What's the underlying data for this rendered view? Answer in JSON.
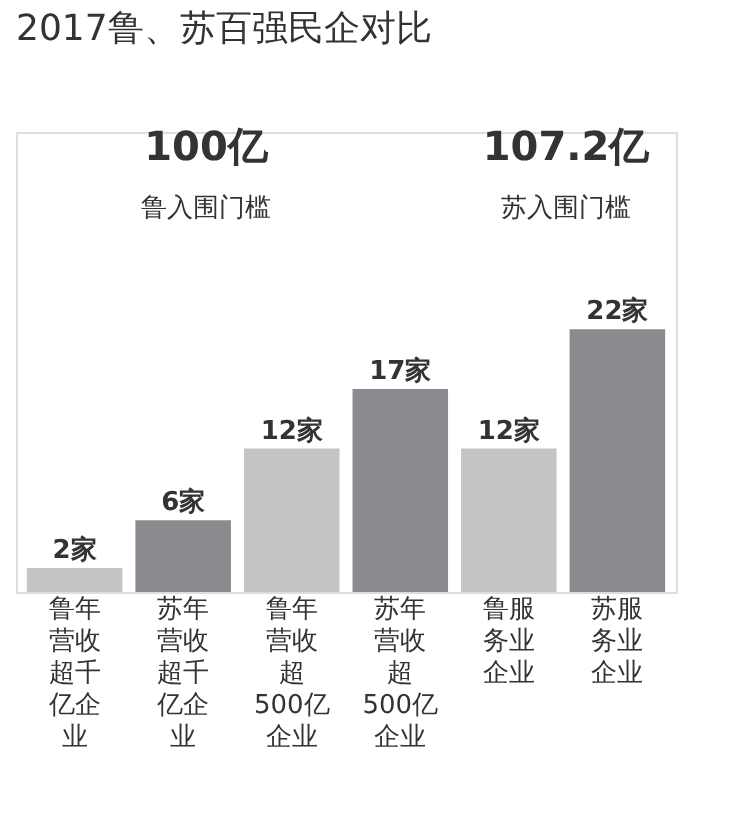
{
  "chart_data": {
    "type": "bar",
    "title": "2017鲁、苏百强民企对比",
    "categories": [
      "鲁年营收超千亿企业",
      "苏年营收超千亿企业",
      "鲁年营收超500亿企业",
      "苏年营收超500亿企业",
      "鲁服务业企业",
      "苏服务业企业"
    ],
    "values": [
      2,
      6,
      12,
      17,
      12,
      22
    ],
    "colors": [
      "#c4c4c4",
      "#8b8b8f",
      "#c4c4c4",
      "#8b8b8f",
      "#c4c4c4",
      "#8b8b8f"
    ],
    "value_labels": [
      "2家",
      "6家",
      "12家",
      "17家",
      "12家",
      "22家"
    ],
    "tick_labels": "x",
    "annotations": [
      "100亿",
      "鲁入围门槛",
      "107.2亿",
      "苏入围门槛"
    ]
  }
}
